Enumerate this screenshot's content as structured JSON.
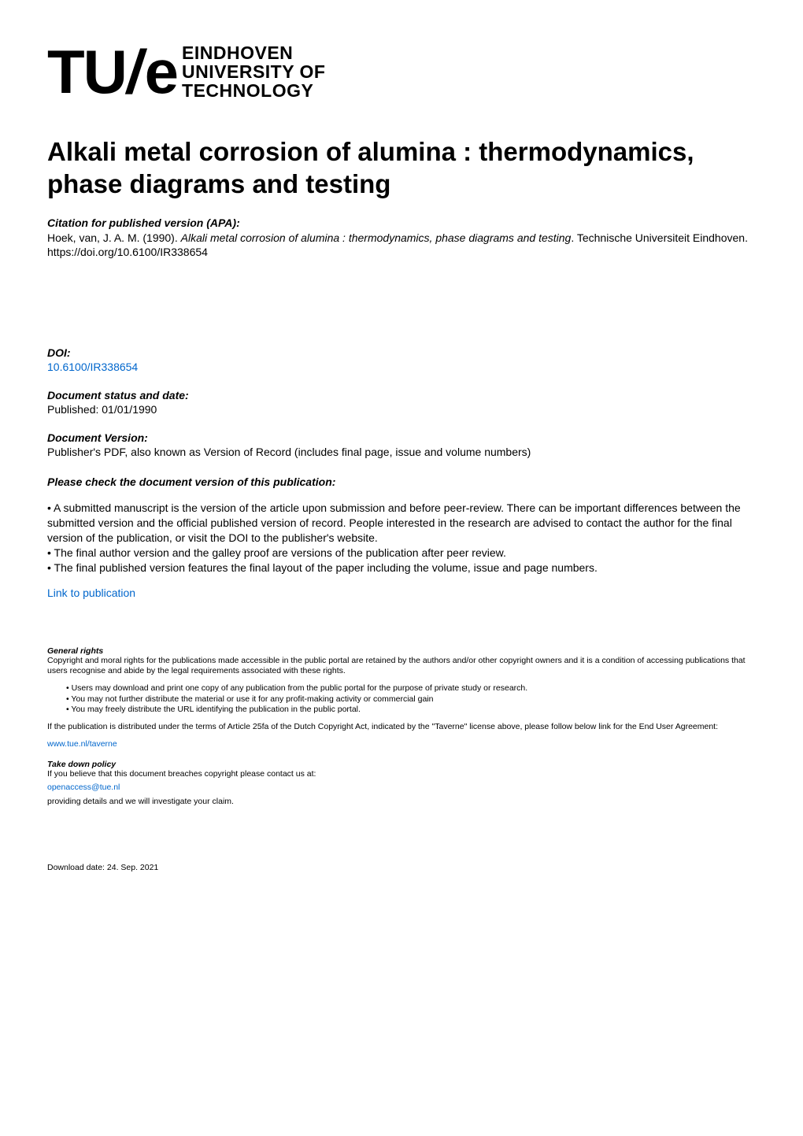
{
  "logo": {
    "tu": "TU",
    "slash": "/",
    "e": "e",
    "line1": "EINDHOVEN",
    "line2": "UNIVERSITY OF",
    "line3": "TECHNOLOGY"
  },
  "title": "Alkali metal corrosion of alumina : thermodynamics, phase diagrams and testing",
  "citation": {
    "head": "Citation for published version (APA):",
    "author": "Hoek, van, J. A. M. (1990). ",
    "work_title": "Alkali metal corrosion of alumina : thermodynamics, phase diagrams and testing",
    "tail": ". Technische Universiteit Eindhoven. https://doi.org/10.6100/IR338654"
  },
  "doi": {
    "head": "DOI:",
    "link_text": "10.6100/IR338654",
    "href": "https://doi.org/10.6100/IR338654"
  },
  "status": {
    "head": "Document status and date:",
    "text": "Published: 01/01/1990"
  },
  "version": {
    "head": "Document Version:",
    "text": "Publisher's PDF, also known as Version of Record (includes final page, issue and volume numbers)"
  },
  "check": {
    "head": "Please check the document version of this publication:",
    "p1": "• A submitted manuscript is the version of the article upon submission and before peer-review. There can be important differences between the submitted version and the official published version of record. People interested in the research are advised to contact the author for the final version of the publication, or visit the DOI to the publisher's website.",
    "p2": "• The final author version and the galley proof are versions of the publication after peer review.",
    "p3": "• The final published version features the final layout of the paper including the volume, issue and page numbers."
  },
  "link_pub": {
    "text": "Link to publication",
    "href": "#"
  },
  "rights": {
    "head": "General rights",
    "p1": "Copyright and moral rights for the publications made accessible in the public portal are retained by the authors and/or other copyright owners and it is a condition of accessing publications that users recognise and abide by the legal requirements associated with these rights.",
    "b1": "Users may download and print one copy of any publication from the public portal for the purpose of private study or research.",
    "b2": "You may not further distribute the material or use it for any profit-making activity or commercial gain",
    "b3": "You may freely distribute the URL identifying the publication in the public portal.",
    "p2": "If the publication is distributed under the terms of Article 25fa of the Dutch Copyright Act, indicated by the \"Taverne\" license above, please follow below link for the End User Agreement:",
    "taverne_text": "www.tue.nl/taverne",
    "taverne_href": "https://www.tue.nl/taverne"
  },
  "takedown": {
    "head": "Take down policy",
    "p1": "If you believe that this document breaches copyright please contact us at:",
    "email_text": "openaccess@tue.nl",
    "email_href": "mailto:openaccess@tue.nl",
    "p2": "providing details and we will investigate your claim."
  },
  "download_date": "Download date: 24. Sep. 2021",
  "colors": {
    "link": "#0066cc",
    "text": "#000000",
    "bg": "#ffffff"
  },
  "typography": {
    "title_fontsize": 33,
    "body_fontsize": 14,
    "small_fontsize": 10.5,
    "logo_main_fontsize": 78,
    "logo_text_fontsize": 23
  }
}
